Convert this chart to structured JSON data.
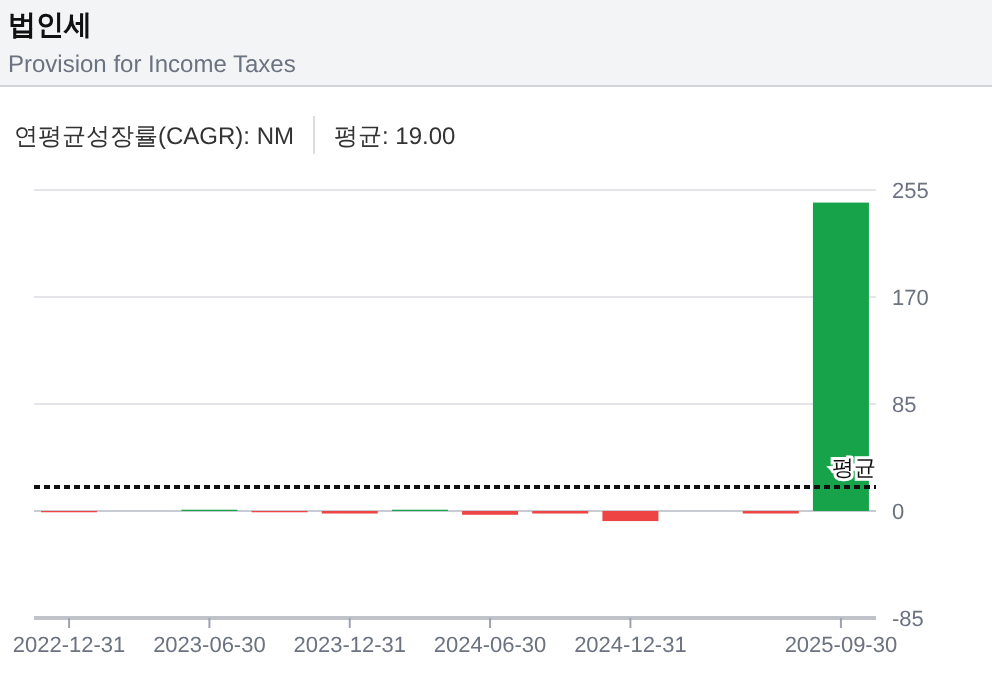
{
  "chart_data": {
    "type": "bar",
    "title": "법인세",
    "subtitle": "Provision for Income Taxes",
    "annotations": [
      "연평균성장률(CAGR): NM",
      "평균: 19.00"
    ],
    "categories": [
      "2022-12-31",
      null,
      "2023-06-30",
      null,
      "2023-12-31",
      null,
      "2024-06-30",
      null,
      "2024-12-31",
      null,
      null,
      "2025-09-30"
    ],
    "values": [
      -1,
      0,
      1,
      -1,
      -2,
      1,
      -3,
      -2,
      -8,
      0,
      -2,
      245
    ],
    "colors": [
      "#ef4444",
      "#ef4444",
      "#16a34a",
      "#ef4444",
      "#ef4444",
      "#16a34a",
      "#ef4444",
      "#ef4444",
      "#ef4444",
      "#ef4444",
      "#ef4444",
      "#16a34a"
    ],
    "ylim": [
      -85,
      255
    ],
    "yticks": [
      -85,
      0,
      85,
      170,
      255
    ],
    "grid": "y",
    "ref_lines": [
      {
        "axis": "y",
        "value": 19,
        "label": "평균",
        "color": "#111111",
        "line_style": "dotted"
      }
    ]
  }
}
